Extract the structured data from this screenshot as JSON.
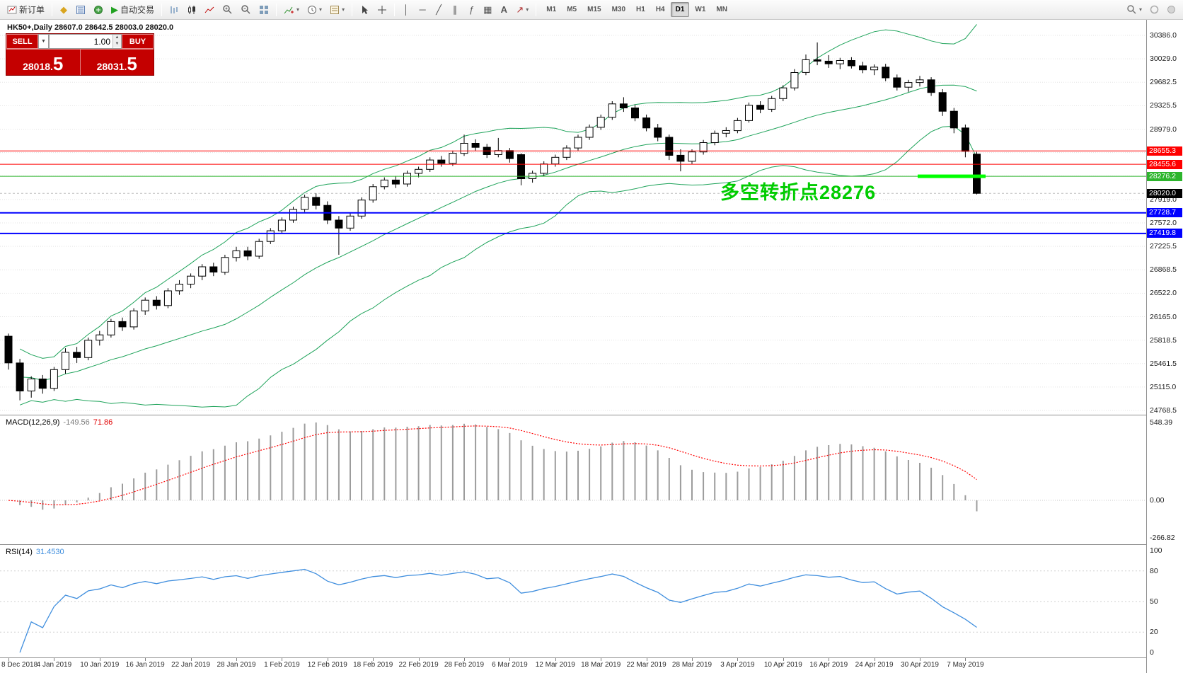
{
  "toolbar": {
    "new_order_label": "新订单",
    "autotrading_label": "自动交易",
    "timeframes": [
      "M1",
      "M5",
      "M15",
      "M30",
      "H1",
      "H4",
      "D1",
      "W1",
      "MN"
    ],
    "active_timeframe": "D1"
  },
  "quote_bar": {
    "title": "HK50+,Daily 28607.0 28642.5 28003.0 28020.0"
  },
  "trade_panel": {
    "sell_label": "SELL",
    "buy_label": "BUY",
    "volume": "1.00",
    "sell_price_main": "28018.",
    "sell_price_big": "5",
    "buy_price_main": "28031.",
    "buy_price_big": "5",
    "panel_color": "#c40000"
  },
  "annotation": {
    "text": "多空转折点28276",
    "color": "#00cc00"
  },
  "panels": {
    "macd": {
      "name": "MACD(12,26,9)",
      "value_main": "-149.56",
      "value_signal": "71.86",
      "axis": [
        "548.39",
        "0.00",
        "-266.82"
      ]
    },
    "rsi": {
      "name": "RSI(14)",
      "value": "31.4530",
      "axis": [
        "100",
        "80",
        "50",
        "20",
        "0"
      ]
    }
  },
  "price_axis": {
    "ticks": [
      "30386.0",
      "30029.0",
      "29682.5",
      "29325.5",
      "28979.0",
      "28622.0",
      "28265.5",
      "27919.0",
      "27572.0",
      "27225.5",
      "26868.5",
      "26522.0",
      "26165.0",
      "25818.5",
      "25461.5",
      "25115.0",
      "24768.5"
    ],
    "top_price": 30386.0,
    "bottom_price": 24768.5
  },
  "levels": [
    {
      "price": 28655.3,
      "label": "28655.3",
      "color": "#ff0000",
      "thickness": 1
    },
    {
      "price": 28455.6,
      "label": "28455.6",
      "color": "#ff0000",
      "thickness": 1
    },
    {
      "price": 28276.2,
      "label": "28276.2",
      "color": "#2db52d",
      "thickness": 1
    },
    {
      "price": 27728.7,
      "label": "27728.7",
      "color": "#0000ff",
      "thickness": 2
    },
    {
      "price": 27419.8,
      "label": "27419.8",
      "color": "#0000ff",
      "thickness": 2
    }
  ],
  "current_price": {
    "value": 28020.0,
    "label": "28020.0",
    "badge_color": "#000000"
  },
  "highlight": {
    "price": 28276.2,
    "color": "#00ff00"
  },
  "date_axis": [
    "8 Dec 2018",
    "4 Jan 2019",
    "10 Jan 2019",
    "16 Jan 2019",
    "22 Jan 2019",
    "28 Jan 2019",
    "1 Feb 2019",
    "12 Feb 2019",
    "18 Feb 2019",
    "22 Feb 2019",
    "28 Feb 2019",
    "6 Mar 2019",
    "12 Mar 2019",
    "18 Mar 2019",
    "22 Mar 2019",
    "28 Mar 2019",
    "3 Apr 2019",
    "10 Apr 2019",
    "16 Apr 2019",
    "24 Apr 2019",
    "30 Apr 2019",
    "7 May 2019"
  ],
  "chart_data": {
    "type": "candlestick",
    "title": "HK50+,Daily",
    "ohlc_last": {
      "open": 28607.0,
      "high": 28642.5,
      "low": 28003.0,
      "close": 28020.0
    },
    "y_range": [
      24768.5,
      30386.0
    ],
    "candles": [
      [
        25880,
        25920,
        25380,
        25480
      ],
      [
        25480,
        25540,
        24920,
        25060
      ],
      [
        25060,
        25280,
        24960,
        25240
      ],
      [
        25240,
        25300,
        25020,
        25100
      ],
      [
        25100,
        25420,
        25060,
        25380
      ],
      [
        25380,
        25700,
        25320,
        25640
      ],
      [
        25640,
        25720,
        25480,
        25560
      ],
      [
        25560,
        25860,
        25520,
        25820
      ],
      [
        25820,
        25960,
        25740,
        25900
      ],
      [
        25900,
        26140,
        25860,
        26100
      ],
      [
        26100,
        26160,
        25960,
        26020
      ],
      [
        26020,
        26300,
        25980,
        26260
      ],
      [
        26260,
        26460,
        26200,
        26420
      ],
      [
        26420,
        26480,
        26280,
        26340
      ],
      [
        26340,
        26600,
        26300,
        26560
      ],
      [
        26560,
        26720,
        26500,
        26660
      ],
      [
        26660,
        26820,
        26600,
        26780
      ],
      [
        26780,
        26960,
        26720,
        26920
      ],
      [
        26920,
        26980,
        26780,
        26840
      ],
      [
        26840,
        27100,
        26800,
        27060
      ],
      [
        27060,
        27220,
        27000,
        27160
      ],
      [
        27160,
        27220,
        27020,
        27080
      ],
      [
        27080,
        27340,
        27040,
        27300
      ],
      [
        27300,
        27500,
        27260,
        27460
      ],
      [
        27460,
        27660,
        27420,
        27620
      ],
      [
        27620,
        27820,
        27580,
        27780
      ],
      [
        27780,
        28000,
        27740,
        27960
      ],
      [
        27960,
        28020,
        27780,
        27840
      ],
      [
        27840,
        27900,
        27560,
        27620
      ],
      [
        27620,
        27680,
        27100,
        27500
      ],
      [
        27500,
        27720,
        27460,
        27680
      ],
      [
        27680,
        27960,
        27640,
        27920
      ],
      [
        27920,
        28160,
        27880,
        28120
      ],
      [
        28120,
        28260,
        28080,
        28220
      ],
      [
        28220,
        28280,
        28100,
        28160
      ],
      [
        28160,
        28360,
        28120,
        28320
      ],
      [
        28320,
        28420,
        28260,
        28380
      ],
      [
        28380,
        28560,
        28340,
        28520
      ],
      [
        28520,
        28580,
        28420,
        28470
      ],
      [
        28470,
        28660,
        28430,
        28620
      ],
      [
        28620,
        28900,
        28580,
        28770
      ],
      [
        28770,
        28830,
        28660,
        28710
      ],
      [
        28710,
        28760,
        28550,
        28600
      ],
      [
        28600,
        28850,
        28560,
        28660
      ],
      [
        28660,
        28700,
        28480,
        28540
      ],
      [
        28600,
        28620,
        28140,
        28240
      ],
      [
        28240,
        28360,
        28180,
        28320
      ],
      [
        28320,
        28500,
        28280,
        28460
      ],
      [
        28460,
        28600,
        28420,
        28560
      ],
      [
        28560,
        28740,
        28520,
        28700
      ],
      [
        28700,
        28900,
        28660,
        28860
      ],
      [
        28860,
        29050,
        28820,
        29010
      ],
      [
        29010,
        29200,
        28970,
        29160
      ],
      [
        29160,
        29400,
        29120,
        29360
      ],
      [
        29360,
        29460,
        29240,
        29300
      ],
      [
        29300,
        29350,
        29100,
        29150
      ],
      [
        29150,
        29200,
        28950,
        29000
      ],
      [
        29000,
        29060,
        28800,
        28860
      ],
      [
        28860,
        28900,
        28520,
        28590
      ],
      [
        28590,
        28680,
        28350,
        28500
      ],
      [
        28500,
        28680,
        28460,
        28640
      ],
      [
        28640,
        28820,
        28600,
        28780
      ],
      [
        28780,
        28960,
        28740,
        28920
      ],
      [
        28920,
        29010,
        28860,
        28960
      ],
      [
        28960,
        29150,
        28920,
        29110
      ],
      [
        29110,
        29380,
        29080,
        29340
      ],
      [
        29340,
        29400,
        29220,
        29280
      ],
      [
        29280,
        29480,
        29240,
        29440
      ],
      [
        29440,
        29640,
        29400,
        29600
      ],
      [
        29600,
        29880,
        29560,
        29830
      ],
      [
        29830,
        30100,
        29790,
        30020
      ],
      [
        30020,
        30280,
        29940,
        30000
      ],
      [
        30000,
        30090,
        29900,
        29960
      ],
      [
        29960,
        30050,
        29880,
        30010
      ],
      [
        30010,
        30060,
        29890,
        29930
      ],
      [
        29930,
        29990,
        29820,
        29870
      ],
      [
        29870,
        29950,
        29790,
        29910
      ],
      [
        29910,
        29960,
        29700,
        29750
      ],
      [
        29750,
        29800,
        29560,
        29610
      ],
      [
        29610,
        29720,
        29540,
        29680
      ],
      [
        29680,
        29780,
        29620,
        29720
      ],
      [
        29720,
        29760,
        29480,
        29530
      ],
      [
        29530,
        29580,
        29180,
        29250
      ],
      [
        29250,
        29300,
        28920,
        29000
      ],
      [
        29000,
        29050,
        28560,
        28650
      ],
      [
        28607,
        28642.5,
        28003,
        28020
      ]
    ],
    "indicators": {
      "bollinger": {
        "period": 20,
        "deviation": 2,
        "color": "#1ea35a"
      },
      "macd": {
        "fast": 12,
        "slow": 26,
        "signal_period": 9,
        "last_macd": -149.56,
        "last_signal": 71.86,
        "scale_max": 548.39,
        "scale_min": -266.82,
        "histogram_color": "#9c9c9c",
        "signal_color": "#ff0000"
      },
      "rsi": {
        "period": 14,
        "last_value": 31.453,
        "levels": [
          80,
          50,
          20
        ],
        "color": "#3f8ede"
      }
    }
  }
}
